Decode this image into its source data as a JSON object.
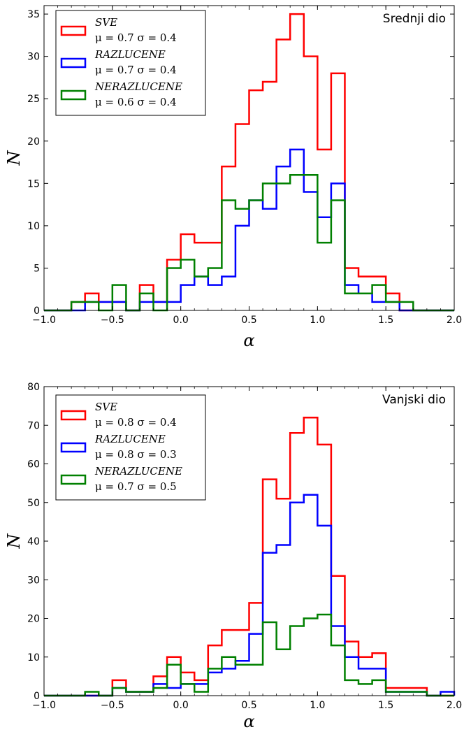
{
  "chart_data": [
    {
      "type": "histogram",
      "title": "Srednji dio",
      "xlabel": "α",
      "ylabel": "N",
      "xlim": [
        -1.0,
        2.0
      ],
      "ylim": [
        0,
        36
      ],
      "xticks": [
        "−1.0",
        "−0.5",
        "0.0",
        "0.5",
        "1.0",
        "1.5",
        "2.0"
      ],
      "yticks": [
        "0",
        "5",
        "10",
        "15",
        "20",
        "25",
        "30",
        "35"
      ],
      "legend_position": "upper-left",
      "bin_edges": [
        -1.0,
        -0.9,
        -0.8,
        -0.7,
        -0.6,
        -0.5,
        -0.4,
        -0.3,
        -0.2,
        -0.1,
        0.0,
        0.1,
        0.2,
        0.3,
        0.4,
        0.5,
        0.6,
        0.7,
        0.8,
        0.9,
        1.0,
        1.1,
        1.2,
        1.3,
        1.4,
        1.5,
        1.6,
        1.7,
        1.8,
        1.9,
        2.0
      ],
      "series": [
        {
          "name": "SVE",
          "stats": "μ = 0.7   σ = 0.4",
          "color": "#ff0000",
          "counts": [
            0,
            0,
            1,
            2,
            1,
            1,
            0,
            3,
            1,
            6,
            9,
            8,
            8,
            17,
            22,
            26,
            27,
            32,
            35,
            30,
            19,
            28,
            5,
            4,
            4,
            2,
            0,
            0,
            0,
            0
          ]
        },
        {
          "name": "RAZLUCENE",
          "stats": "μ = 0.7   σ = 0.4",
          "color": "#0000ff",
          "counts": [
            0,
            0,
            0,
            1,
            1,
            1,
            0,
            1,
            1,
            1,
            3,
            4,
            3,
            4,
            10,
            13,
            12,
            17,
            19,
            14,
            11,
            15,
            3,
            2,
            1,
            1,
            0,
            0,
            0,
            0
          ]
        },
        {
          "name": "NERAZLUCENE",
          "stats": "μ = 0.6   σ = 0.4",
          "color": "#008000",
          "counts": [
            0,
            0,
            1,
            1,
            0,
            3,
            0,
            2,
            0,
            5,
            6,
            4,
            5,
            13,
            12,
            13,
            15,
            15,
            16,
            16,
            8,
            13,
            2,
            2,
            3,
            1,
            1,
            0,
            0,
            0
          ]
        }
      ]
    },
    {
      "type": "histogram",
      "title": "Vanjski dio",
      "xlabel": "α",
      "ylabel": "N",
      "xlim": [
        -1.0,
        2.0
      ],
      "ylim": [
        0,
        80
      ],
      "xticks": [
        "−1.0",
        "−0.5",
        "0.0",
        "0.5",
        "1.0",
        "1.5",
        "2.0"
      ],
      "yticks": [
        "0",
        "10",
        "20",
        "30",
        "40",
        "50",
        "60",
        "70",
        "80"
      ],
      "legend_position": "upper-left",
      "bin_edges": [
        -1.0,
        -0.9,
        -0.8,
        -0.7,
        -0.6,
        -0.5,
        -0.4,
        -0.3,
        -0.2,
        -0.1,
        0.0,
        0.1,
        0.2,
        0.3,
        0.4,
        0.5,
        0.6,
        0.7,
        0.8,
        0.9,
        1.0,
        1.1,
        1.2,
        1.3,
        1.4,
        1.5,
        1.6,
        1.7,
        1.8,
        1.9,
        2.0
      ],
      "series": [
        {
          "name": "SVE",
          "stats": "μ = 0.8   σ = 0.4",
          "color": "#ff0000",
          "counts": [
            0,
            0,
            0,
            0,
            0,
            4,
            1,
            1,
            5,
            10,
            6,
            4,
            13,
            17,
            17,
            24,
            56,
            51,
            68,
            72,
            65,
            31,
            14,
            10,
            11,
            2,
            2,
            2,
            0,
            0
          ]
        },
        {
          "name": "RAZLUCENE",
          "stats": "μ = 0.8   σ = 0.3",
          "color": "#0000ff",
          "counts": [
            0,
            0,
            0,
            0,
            0,
            2,
            1,
            1,
            3,
            2,
            3,
            3,
            6,
            7,
            9,
            16,
            37,
            39,
            50,
            52,
            44,
            18,
            10,
            7,
            7,
            1,
            1,
            1,
            0,
            1
          ]
        },
        {
          "name": "NERAZLUCENE",
          "stats": "μ = 0.7   σ = 0.5",
          "color": "#008000",
          "counts": [
            0,
            0,
            0,
            1,
            0,
            2,
            1,
            1,
            2,
            8,
            3,
            1,
            7,
            10,
            8,
            8,
            19,
            12,
            18,
            20,
            21,
            13,
            4,
            3,
            4,
            1,
            1,
            1,
            0,
            0
          ]
        }
      ]
    }
  ]
}
